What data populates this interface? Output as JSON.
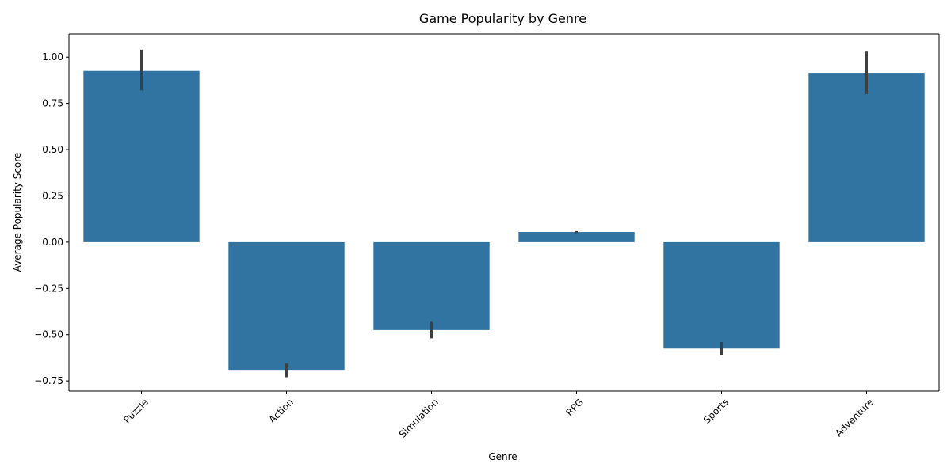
{
  "chart_data": {
    "type": "bar",
    "title": "Game Popularity by Genre",
    "xlabel": "Genre",
    "ylabel": "Average Popularity Score",
    "categories": [
      "Puzzle",
      "Action",
      "Simulation",
      "RPG",
      "Sports",
      "Adventure"
    ],
    "values": [
      0.925,
      -0.69,
      -0.475,
      0.055,
      -0.575,
      0.915
    ],
    "error_bars": [
      {
        "low": 0.82,
        "high": 1.04
      },
      {
        "low": -0.73,
        "high": -0.655
      },
      {
        "low": -0.52,
        "high": -0.43
      },
      {
        "low": 0.05,
        "high": 0.06
      },
      {
        "low": -0.61,
        "high": -0.54
      },
      {
        "low": 0.8,
        "high": 1.03
      }
    ],
    "ylim": [
      -0.805,
      1.125
    ],
    "yticks": [
      -0.75,
      -0.5,
      -0.25,
      0.0,
      0.25,
      0.5,
      0.75,
      1.0
    ],
    "ytick_labels": [
      "−0.75",
      "−0.50",
      "−0.25",
      "0.00",
      "0.25",
      "0.50",
      "0.75",
      "1.00"
    ],
    "xtick_rotation": 45,
    "grid": false,
    "colors": {
      "bar": "#3274a1",
      "error": "#3f3f3f"
    }
  }
}
